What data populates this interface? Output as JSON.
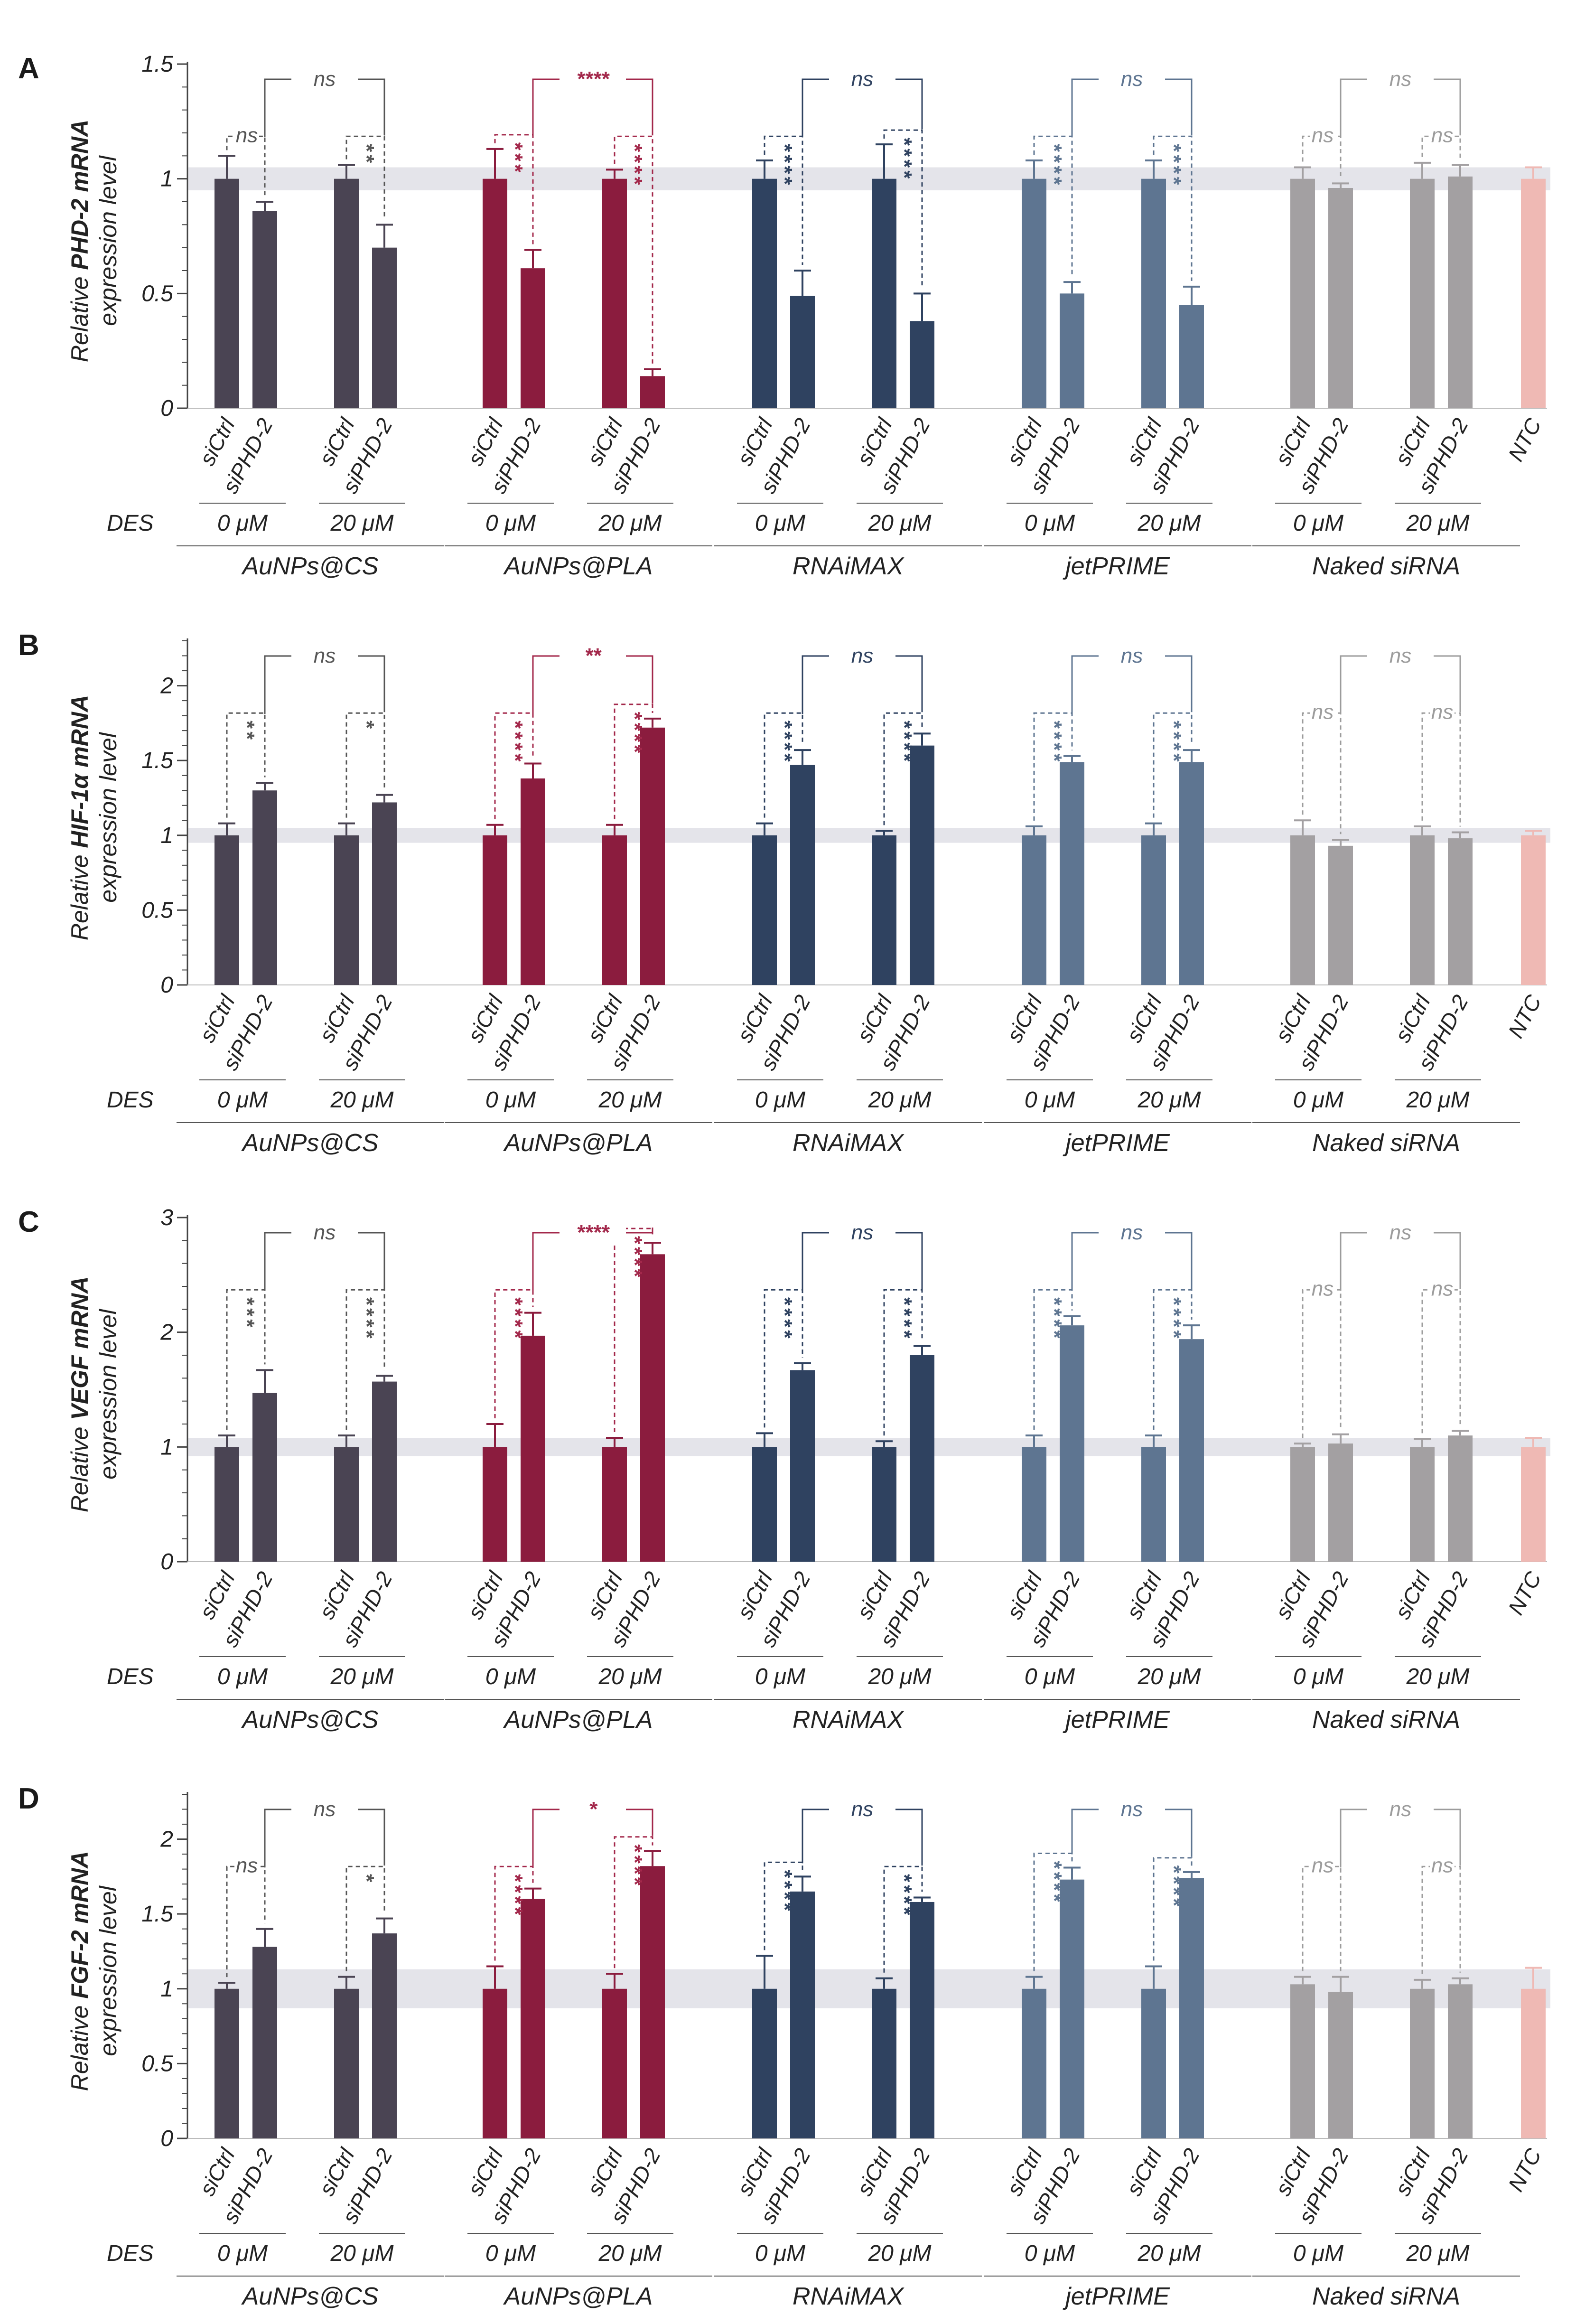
{
  "figure_panels": [
    "A",
    "B",
    "C",
    "D"
  ],
  "legend_des_label": "DES",
  "concentration_labels": [
    "0 μM",
    "20 μM"
  ],
  "bar_labels": [
    "siCtrl",
    "siPHD-2"
  ],
  "ntc_label": "NTC",
  "colors": {
    "AuNPs@CS": "#4a4453",
    "AuNPs@PLA": "#8b1c3e",
    "RNAiMAX": "#2f4260",
    "jetPRIME": "#5e7591",
    "Naked siRNA": "#a3a0a2",
    "NTC": "#efb9b4",
    "band": "#e4e4ea",
    "axis": "#444444"
  },
  "chart_data": [
    {
      "type": "bar",
      "panel": "A",
      "ylabel_italic": "Relative",
      "ylabel_gene": "PHD-2 mRNA",
      "ylabel_line2": "expression level",
      "ylim": [
        0,
        1.5
      ],
      "yticks": [
        "0",
        "0.5",
        "1",
        "1.5"
      ],
      "band": [
        0.95,
        1.05
      ],
      "groups": [
        {
          "name": "AuNPs@CS",
          "values": [
            1.0,
            0.86,
            1.0,
            0.7
          ],
          "errors": [
            0.1,
            0.04,
            0.06,
            0.1
          ],
          "sig_des0": "ns",
          "sig_des20": "**",
          "sig_cross": "ns"
        },
        {
          "name": "AuNPs@PLA",
          "values": [
            1.0,
            0.61,
            1.0,
            0.14
          ],
          "errors": [
            0.13,
            0.08,
            0.04,
            0.03
          ],
          "sig_des0": "***",
          "sig_des20": "****",
          "sig_cross": "****"
        },
        {
          "name": "RNAiMAX",
          "values": [
            1.0,
            0.49,
            1.0,
            0.38
          ],
          "errors": [
            0.08,
            0.11,
            0.15,
            0.12
          ],
          "sig_des0": "****",
          "sig_des20": "****",
          "sig_cross": "ns"
        },
        {
          "name": "jetPRIME",
          "values": [
            1.0,
            0.5,
            1.0,
            0.45
          ],
          "errors": [
            0.08,
            0.05,
            0.08,
            0.08
          ],
          "sig_des0": "****",
          "sig_des20": "****",
          "sig_cross": "ns"
        },
        {
          "name": "Naked siRNA",
          "values": [
            1.0,
            0.96,
            1.0,
            1.01
          ],
          "errors": [
            0.05,
            0.02,
            0.07,
            0.05
          ],
          "sig_des0": "ns",
          "sig_des20": "ns",
          "sig_cross": "ns"
        }
      ],
      "ntc": {
        "value": 1.0,
        "error": 0.05
      }
    },
    {
      "type": "bar",
      "panel": "B",
      "ylabel_italic": "Relative",
      "ylabel_gene": "HIF-1α mRNA",
      "ylabel_line2": "expression level",
      "ylim": [
        0,
        2.3
      ],
      "yticks": [
        "0",
        "0.5",
        "1",
        "1.5",
        "2"
      ],
      "band": [
        0.95,
        1.05
      ],
      "groups": [
        {
          "name": "AuNPs@CS",
          "values": [
            1.0,
            1.3,
            1.0,
            1.22
          ],
          "errors": [
            0.08,
            0.05,
            0.08,
            0.05
          ],
          "sig_des0": "**",
          "sig_des20": "*",
          "sig_cross": "ns"
        },
        {
          "name": "AuNPs@PLA",
          "values": [
            1.0,
            1.38,
            1.0,
            1.72
          ],
          "errors": [
            0.07,
            0.1,
            0.07,
            0.06
          ],
          "sig_des0": "****",
          "sig_des20": "****",
          "sig_cross": "**"
        },
        {
          "name": "RNAiMAX",
          "values": [
            1.0,
            1.47,
            1.0,
            1.6
          ],
          "errors": [
            0.08,
            0.1,
            0.03,
            0.08
          ],
          "sig_des0": "****",
          "sig_des20": "****",
          "sig_cross": "ns"
        },
        {
          "name": "jetPRIME",
          "values": [
            1.0,
            1.49,
            1.0,
            1.49
          ],
          "errors": [
            0.06,
            0.04,
            0.08,
            0.08
          ],
          "sig_des0": "****",
          "sig_des20": "****",
          "sig_cross": "ns"
        },
        {
          "name": "Naked siRNA",
          "values": [
            1.0,
            0.93,
            1.0,
            0.98
          ],
          "errors": [
            0.1,
            0.04,
            0.06,
            0.04
          ],
          "sig_des0": "ns",
          "sig_des20": "ns",
          "sig_cross": "ns"
        }
      ],
      "ntc": {
        "value": 1.0,
        "error": 0.03
      }
    },
    {
      "type": "bar",
      "panel": "C",
      "ylabel_italic": "Relative",
      "ylabel_gene": "VEGF mRNA",
      "ylabel_line2": "expression level",
      "ylim": [
        0,
        3
      ],
      "yticks": [
        "0",
        "1",
        "2",
        "3"
      ],
      "band": [
        0.92,
        1.08
      ],
      "groups": [
        {
          "name": "AuNPs@CS",
          "values": [
            1.0,
            1.47,
            1.0,
            1.57
          ],
          "errors": [
            0.1,
            0.2,
            0.1,
            0.05
          ],
          "sig_des0": "***",
          "sig_des20": "****",
          "sig_cross": "ns"
        },
        {
          "name": "AuNPs@PLA",
          "values": [
            1.0,
            1.97,
            1.0,
            2.68
          ],
          "errors": [
            0.2,
            0.2,
            0.08,
            0.1
          ],
          "sig_des0": "****",
          "sig_des20": "****",
          "sig_cross": "****"
        },
        {
          "name": "RNAiMAX",
          "values": [
            1.0,
            1.67,
            1.0,
            1.8
          ],
          "errors": [
            0.12,
            0.06,
            0.05,
            0.08
          ],
          "sig_des0": "****",
          "sig_des20": "****",
          "sig_cross": "ns"
        },
        {
          "name": "jetPRIME",
          "values": [
            1.0,
            2.06,
            1.0,
            1.94
          ],
          "errors": [
            0.1,
            0.08,
            0.1,
            0.12
          ],
          "sig_des0": "****",
          "sig_des20": "****",
          "sig_cross": "ns"
        },
        {
          "name": "Naked siRNA",
          "values": [
            1.0,
            1.03,
            1.0,
            1.1
          ],
          "errors": [
            0.03,
            0.08,
            0.07,
            0.04
          ],
          "sig_des0": "ns",
          "sig_des20": "ns",
          "sig_cross": "ns"
        }
      ],
      "ntc": {
        "value": 1.0,
        "error": 0.08
      }
    },
    {
      "type": "bar",
      "panel": "D",
      "ylabel_italic": "Relative",
      "ylabel_gene": "FGF-2 mRNA",
      "ylabel_line2": "expression level",
      "ylim": [
        0,
        2.3
      ],
      "yticks": [
        "0",
        "0.5",
        "1",
        "1.5",
        "2"
      ],
      "band": [
        0.87,
        1.13
      ],
      "groups": [
        {
          "name": "AuNPs@CS",
          "values": [
            1.0,
            1.28,
            1.0,
            1.37
          ],
          "errors": [
            0.04,
            0.12,
            0.08,
            0.1
          ],
          "sig_des0": "ns",
          "sig_des20": "*",
          "sig_cross": "ns"
        },
        {
          "name": "AuNPs@PLA",
          "values": [
            1.0,
            1.6,
            1.0,
            1.82
          ],
          "errors": [
            0.15,
            0.07,
            0.1,
            0.1
          ],
          "sig_des0": "****",
          "sig_des20": "****",
          "sig_cross": "*"
        },
        {
          "name": "RNAiMAX",
          "values": [
            1.0,
            1.65,
            1.0,
            1.58
          ],
          "errors": [
            0.22,
            0.1,
            0.07,
            0.03
          ],
          "sig_des0": "****",
          "sig_des20": "****",
          "sig_cross": "ns"
        },
        {
          "name": "jetPRIME",
          "values": [
            1.0,
            1.73,
            1.0,
            1.74
          ],
          "errors": [
            0.08,
            0.08,
            0.15,
            0.04
          ],
          "sig_des0": "****",
          "sig_des20": "****",
          "sig_cross": "ns"
        },
        {
          "name": "Naked siRNA",
          "values": [
            1.03,
            0.98,
            1.0,
            1.03
          ],
          "errors": [
            0.05,
            0.1,
            0.06,
            0.04
          ],
          "sig_des0": "ns",
          "sig_des20": "ns",
          "sig_cross": "ns"
        }
      ],
      "ntc": {
        "value": 1.0,
        "error": 0.14
      }
    }
  ]
}
